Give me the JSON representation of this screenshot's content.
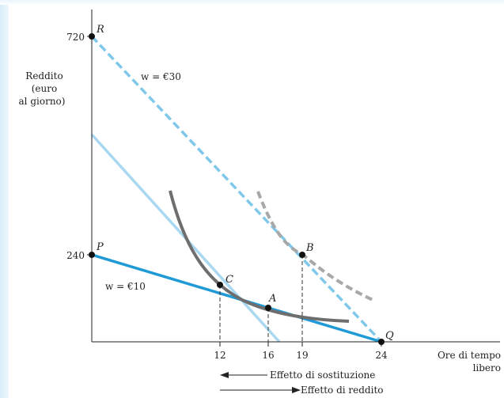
{
  "axes": {
    "y_label_lines": [
      "Reddito",
      "(euro",
      "al giorno)"
    ],
    "x_label_lines": [
      "Ore di tempo",
      "libero"
    ],
    "y_ticks": [
      "720",
      "240"
    ],
    "x_ticks": [
      "12",
      "16",
      "19",
      "24"
    ]
  },
  "points": {
    "R": "R",
    "P": "P",
    "B": "B",
    "C": "C",
    "A": "A",
    "Q": "Q"
  },
  "wage_labels": {
    "high": "w = €30",
    "low": "w = €10"
  },
  "effects": {
    "substitution": "Effetto di sostituzione",
    "income": "Effetto di reddito"
  },
  "colors": {
    "budget_low": "#1f9ad6",
    "budget_high_dashed": "#7fc8ea",
    "compensated_line": "#a9d8f0",
    "indifference_solid": "#6e6e6e",
    "indifference_dashed": "#a8a8a8",
    "axis": "#222222"
  }
}
